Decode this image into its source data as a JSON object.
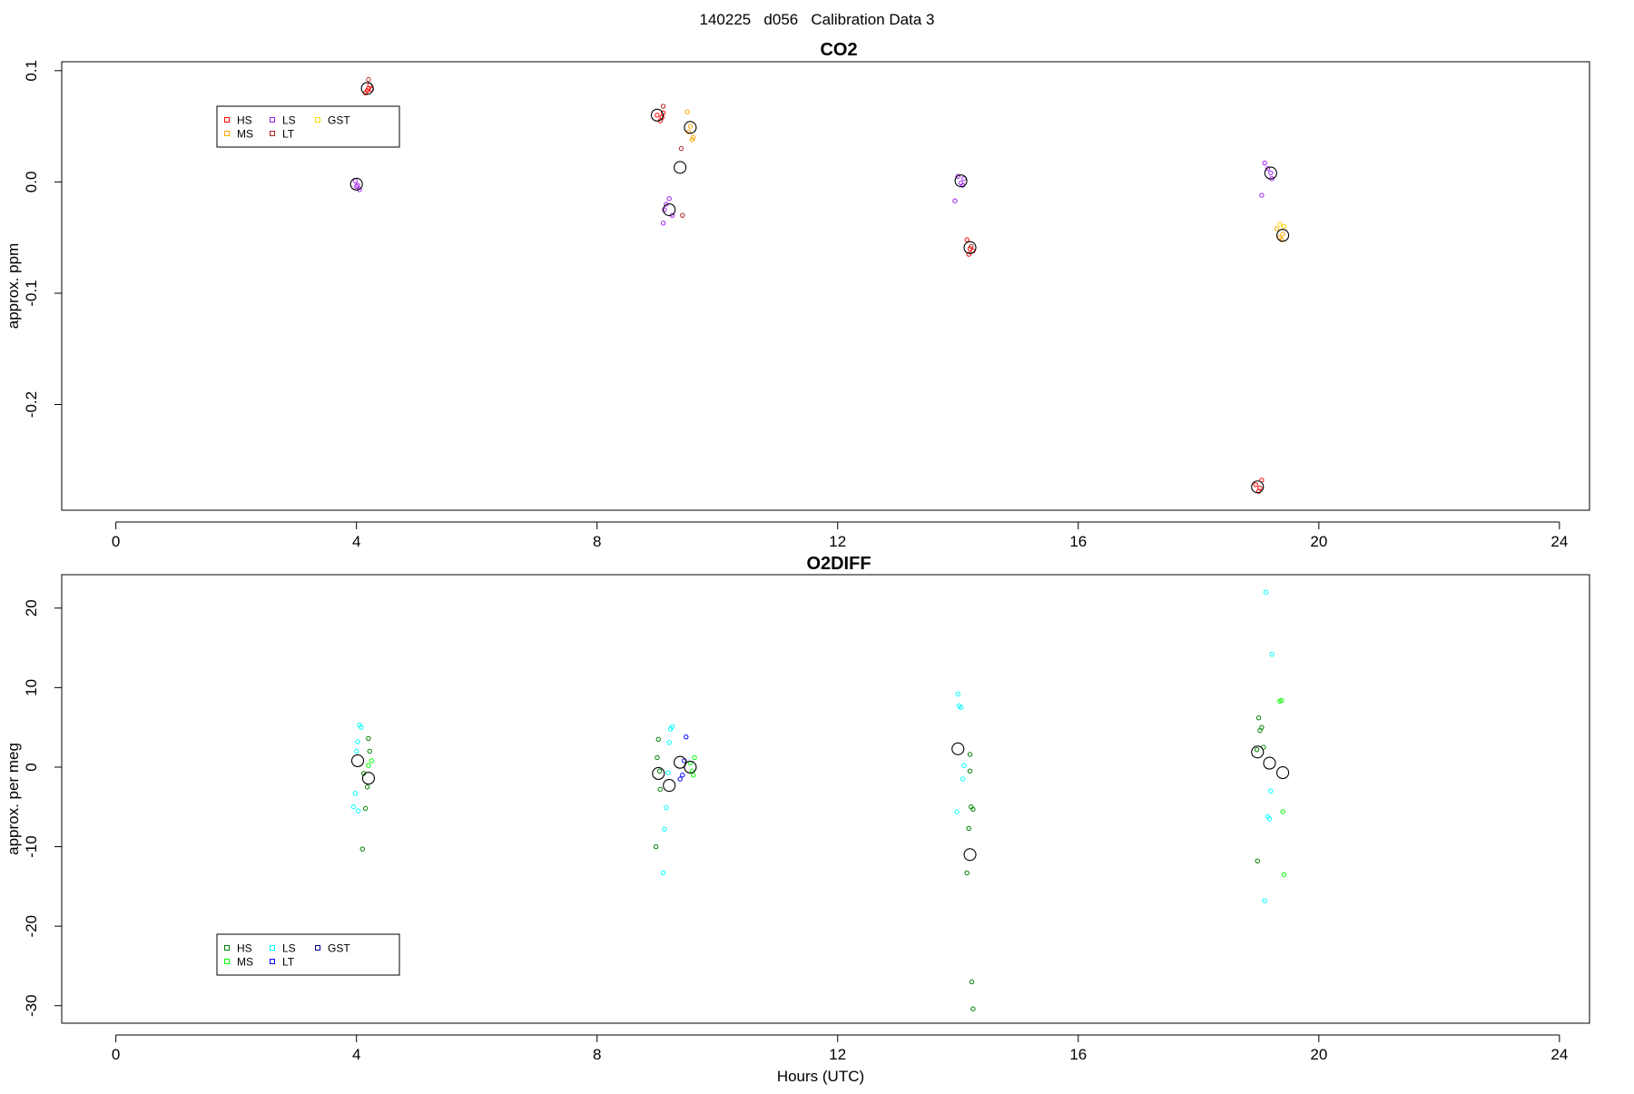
{
  "figure": {
    "suptitle": "140225   d056   Calibration Data 3",
    "xlabel": "Hours (UTC)"
  },
  "chart_data": [
    {
      "type": "scatter",
      "title": "CO2",
      "xlabel": "",
      "ylabel": "approx. ppm",
      "xlim": [
        -0.9,
        24.5
      ],
      "ylim": [
        -0.295,
        0.108
      ],
      "xticks": [
        "0",
        "4",
        "8",
        "12",
        "16",
        "20",
        "24"
      ],
      "yticks": [
        "0.1",
        "0.0",
        "-0.1",
        "-0.2"
      ],
      "legend": {
        "placement": "top-left",
        "entries": [
          {
            "name": "HS",
            "color": "#ff0000"
          },
          {
            "name": "MS",
            "color": "#ffa500"
          },
          {
            "name": "LS",
            "color": "#a020f0"
          },
          {
            "name": "LT",
            "color": "#b22222"
          },
          {
            "name": "GST",
            "color": "#ffd700"
          }
        ]
      },
      "series": [
        {
          "name": "HS",
          "color": "#ff0000",
          "x": [
            4.15,
            4.2,
            4.22,
            4.18,
            4.25,
            9.0,
            9.05,
            9.1,
            9.08,
            14.15,
            14.2,
            14.25,
            14.18,
            18.95,
            19.0,
            19.05,
            19.02
          ],
          "y": [
            0.08,
            0.084,
            0.087,
            0.082,
            0.083,
            0.06,
            0.055,
            0.062,
            0.058,
            -0.052,
            -0.06,
            -0.062,
            -0.065,
            -0.272,
            -0.278,
            -0.268,
            -0.275
          ]
        },
        {
          "name": "MS",
          "color": "#ffa500",
          "x": [
            9.5,
            9.55,
            9.6,
            9.52,
            9.58,
            19.3,
            19.35,
            19.4,
            19.38
          ],
          "y": [
            0.063,
            0.05,
            0.04,
            0.045,
            0.038,
            -0.042,
            -0.05,
            -0.047,
            -0.052
          ]
        },
        {
          "name": "LS",
          "color": "#a020f0",
          "x": [
            3.98,
            4.02,
            4.05,
            4.0,
            9.1,
            9.15,
            9.2,
            9.25,
            9.12,
            14.0,
            14.05,
            14.1,
            14.08,
            13.95,
            19.1,
            19.15,
            19.2,
            19.22,
            19.05
          ],
          "y": [
            0.001,
            -0.003,
            -0.007,
            -0.004,
            -0.037,
            -0.02,
            -0.015,
            -0.03,
            -0.025,
            0.005,
            -0.001,
            0.003,
            -0.003,
            -0.017,
            0.017,
            0.012,
            0.008,
            0.003,
            -0.012
          ]
        },
        {
          "name": "LT",
          "color": "#b22222",
          "x": [
            4.2,
            9.4,
            9.42,
            9.1,
            14.22
          ],
          "y": [
            0.092,
            0.03,
            -0.03,
            0.068,
            -0.058
          ]
        },
        {
          "name": "GST",
          "color": "#ffd700",
          "x": [
            19.35,
            19.42
          ],
          "y": [
            -0.038,
            -0.04
          ]
        },
        {
          "name": "mean",
          "color": "#000000",
          "x": [
            4.0,
            4.18,
            9.0,
            9.2,
            9.38,
            9.55,
            14.05,
            14.2,
            18.98,
            19.2,
            19.4
          ],
          "y": [
            -0.002,
            0.084,
            0.06,
            -0.025,
            0.013,
            0.049,
            0.001,
            -0.059,
            -0.274,
            0.008,
            -0.048
          ]
        }
      ]
    },
    {
      "type": "scatter",
      "title": "O2DIFF",
      "xlabel": "Hours (UTC)",
      "ylabel": "approx. per meg",
      "xlim": [
        -0.9,
        24.5
      ],
      "ylim": [
        -32.2,
        24.2
      ],
      "xticks": [
        "0",
        "4",
        "8",
        "12",
        "16",
        "20",
        "24"
      ],
      "yticks": [
        "20",
        "10",
        "0",
        "-10",
        "-20",
        "-30"
      ],
      "legend": {
        "placement": "bottom-left",
        "entries": [
          {
            "name": "HS",
            "color": "#008000"
          },
          {
            "name": "MS",
            "color": "#00ff00"
          },
          {
            "name": "LS",
            "color": "#00ffff"
          },
          {
            "name": "LT",
            "color": "#0000ff"
          },
          {
            "name": "GST",
            "color": "#00008b"
          }
        ]
      },
      "series": [
        {
          "name": "HS",
          "color": "#008000",
          "x": [
            4.1,
            4.15,
            4.2,
            4.22,
            4.18,
            4.12,
            8.98,
            9.02,
            9.05,
            9.0,
            9.04,
            14.2,
            14.22,
            14.25,
            14.18,
            14.15,
            14.2,
            14.23,
            14.25,
            18.98,
            19.0,
            19.02,
            19.05,
            19.08,
            18.97
          ],
          "y": [
            -10.3,
            -5.2,
            3.6,
            2.0,
            -2.5,
            -0.8,
            -10.0,
            3.5,
            -2.8,
            1.2,
            -0.5,
            1.6,
            -5.0,
            -5.3,
            -7.7,
            -13.3,
            -0.5,
            -27.0,
            -30.4,
            -11.8,
            6.2,
            4.6,
            5.0,
            2.5,
            2.2
          ]
        },
        {
          "name": "MS",
          "color": "#00ff00",
          "x": [
            4.2,
            4.25,
            9.55,
            9.6,
            9.62,
            9.58,
            19.35,
            19.38,
            19.4,
            19.42
          ],
          "y": [
            0.2,
            0.8,
            0.5,
            -1.0,
            1.2,
            -0.5,
            8.3,
            8.4,
            -5.6,
            -13.5
          ]
        },
        {
          "name": "LS",
          "color": "#00ffff",
          "x": [
            3.95,
            3.98,
            4.0,
            4.02,
            4.05,
            4.08,
            4.03,
            9.1,
            9.12,
            9.15,
            9.18,
            9.2,
            9.22,
            9.25,
            14.0,
            14.02,
            14.05,
            14.08,
            14.1,
            13.98,
            19.1,
            19.15,
            19.18,
            19.2,
            19.22,
            19.12
          ],
          "y": [
            -5.0,
            -3.3,
            2.0,
            3.2,
            5.3,
            5.0,
            -5.5,
            -13.3,
            -7.8,
            -5.1,
            -0.7,
            3.1,
            4.8,
            5.1,
            9.2,
            7.7,
            7.5,
            -1.5,
            0.2,
            -5.6,
            -16.8,
            -6.2,
            -6.5,
            -3.0,
            14.2,
            22.0
          ]
        },
        {
          "name": "LT",
          "color": "#0000ff",
          "x": [
            9.38,
            9.42,
            9.45,
            9.48
          ],
          "y": [
            -1.5,
            -1.0,
            0.8,
            3.8
          ]
        },
        {
          "name": "mean",
          "color": "#000000",
          "x": [
            4.02,
            4.2,
            9.02,
            9.2,
            9.38,
            9.55,
            14.0,
            14.2,
            18.98,
            19.18,
            19.4
          ],
          "y": [
            0.8,
            -1.4,
            -0.8,
            -2.3,
            0.6,
            0.0,
            2.3,
            -11.0,
            1.9,
            0.5,
            -0.7
          ]
        }
      ]
    }
  ]
}
